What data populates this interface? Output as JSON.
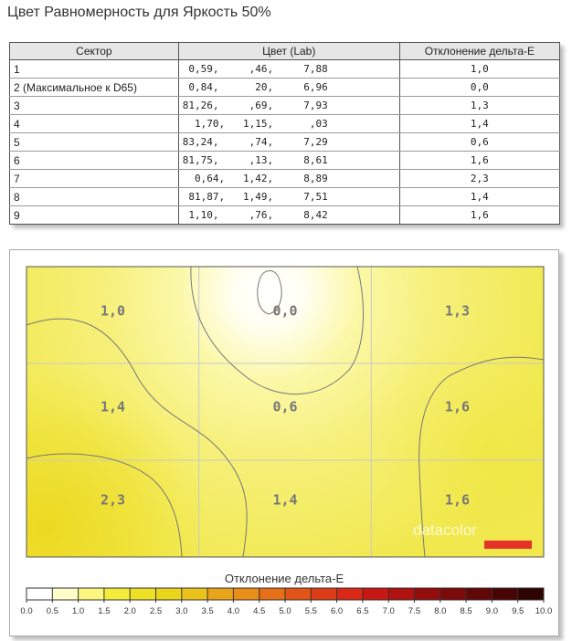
{
  "title": "Цвет Равномерность для Яркость 50%",
  "table": {
    "headers": [
      "Сектор",
      "Цвет (Lab)",
      "Отклонение дельта-E"
    ],
    "rows": [
      {
        "sector": "1",
        "lab": "0,59,     ,46,     7,88",
        "de": "1,0"
      },
      {
        "sector": "2 (Максимальное к D65)",
        "lab": "0,84,      20,     6,96",
        "de": "0,0"
      },
      {
        "sector": "3",
        "lab": "81,26,     ,69,     7,93",
        "de": "1,3"
      },
      {
        "sector": "4",
        "lab": "1,70,   1,15,      ,03",
        "de": "1,4"
      },
      {
        "sector": "5",
        "lab": "83,24,     ,74,     7,29",
        "de": "0,6"
      },
      {
        "sector": "6",
        "lab": "81,75,     ,13,     8,61",
        "de": "1,6"
      },
      {
        "sector": "7",
        "lab": "0,64,   1,42,     8,89",
        "de": "2,3"
      },
      {
        "sector": "8",
        "lab": "81,87,   1,49,     7,51",
        "de": "1,4"
      },
      {
        "sector": "9",
        "lab": "1,10,     ,76,     8,42",
        "de": "1,6"
      }
    ]
  },
  "chart_data": {
    "type": "heatmap",
    "title": "Отклонение дельта-E",
    "grid": [
      [
        "1,0",
        "0,0",
        "1,3"
      ],
      [
        "1,4",
        "0,6",
        "1,6"
      ],
      [
        "2,3",
        "1,4",
        "1,6"
      ]
    ],
    "values": [
      [
        1.0,
        0.0,
        1.3
      ],
      [
        1.4,
        0.6,
        1.6
      ],
      [
        2.3,
        1.4,
        1.6
      ]
    ],
    "scale": {
      "ticks": [
        "0.0",
        "0.5",
        "1.0",
        "1.5",
        "2.0",
        "2.5",
        "3.0",
        "3.5",
        "4.0",
        "4.5",
        "5.0",
        "5.5",
        "6.0",
        "6.5",
        "7.0",
        "7.5",
        "8.0",
        "8.5",
        "9.0",
        "9.5",
        "10.0"
      ],
      "min": 0,
      "max": 10,
      "colors": [
        "#ffffff",
        "#fffec8",
        "#fbf77e",
        "#f4ec3a",
        "#eee024",
        "#ebd41c",
        "#ebc11b",
        "#eaa41a",
        "#e98e19",
        "#e66f18",
        "#e25417",
        "#dd3d16",
        "#d92916",
        "#c81814",
        "#b01111",
        "#960d0e",
        "#7c0a0b",
        "#620708",
        "#490505",
        "#300303",
        "#111111"
      ]
    },
    "watermark": "datacolor",
    "grid_lines": true
  }
}
